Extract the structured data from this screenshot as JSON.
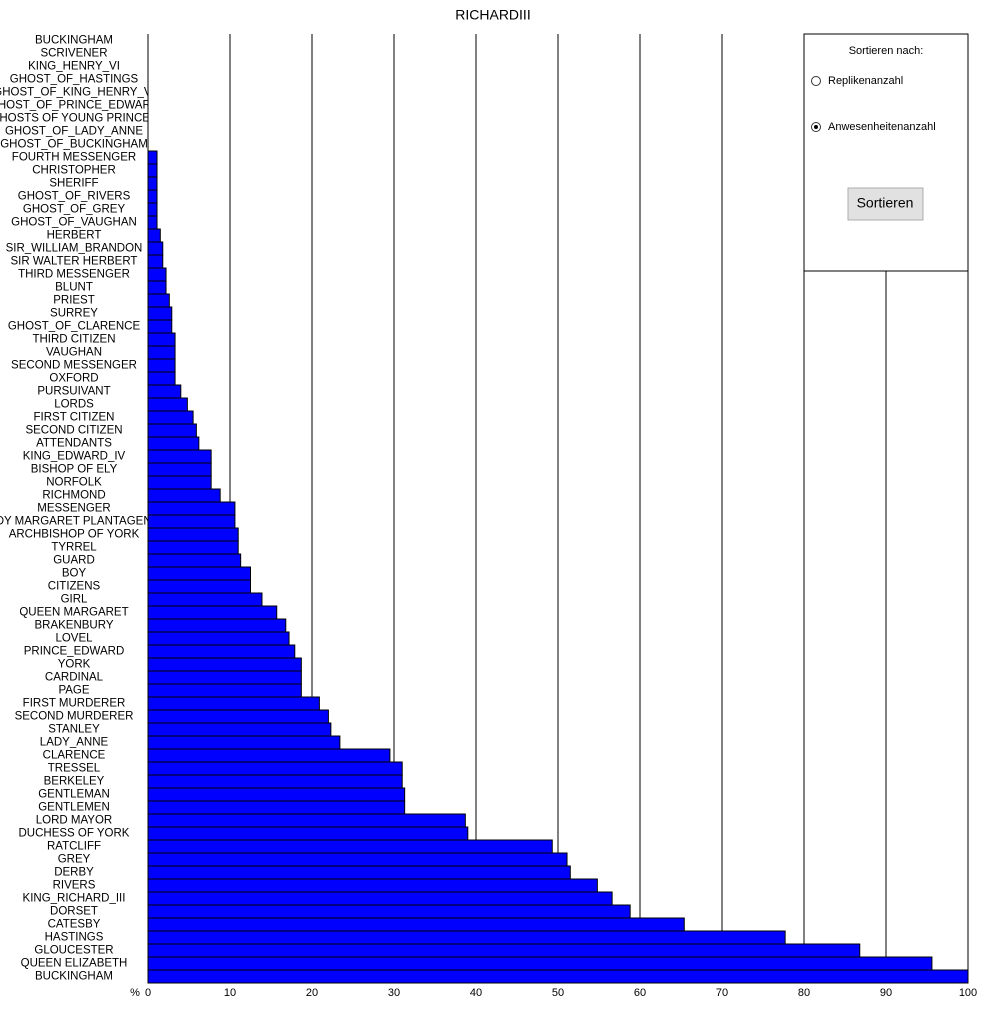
{
  "chart_data": {
    "type": "bar",
    "orientation": "horizontal",
    "title": "RICHARDIII",
    "x_label": "%",
    "categories": [
      "BUCKINGHAM",
      "SCRIVENER",
      "KING_HENRY_VI",
      "GHOST_OF_HASTINGS",
      "GHOST_OF_KING_HENRY_VI",
      "GHOST_OF_PRINCE_EDWARD",
      "GHOSTS OF YOUNG PRINCES",
      "GHOST_OF_LADY_ANNE",
      "GHOST_OF_BUCKINGHAM",
      "FOURTH MESSENGER",
      "CHRISTOPHER",
      "SHERIFF",
      "GHOST_OF_RIVERS",
      "GHOST_OF_GREY",
      "GHOST_OF_VAUGHAN",
      "HERBERT",
      "SIR_WILLIAM_BRANDON",
      "SIR WALTER HERBERT",
      "THIRD MESSENGER",
      "BLUNT",
      "PRIEST",
      "SURREY",
      "GHOST_OF_CLARENCE",
      "THIRD CITIZEN",
      "VAUGHAN",
      "SECOND MESSENGER",
      "OXFORD",
      "PURSUIVANT",
      "LORDS",
      "FIRST CITIZEN",
      "SECOND CITIZEN",
      "ATTENDANTS",
      "KING_EDWARD_IV",
      "BISHOP OF ELY",
      "NORFOLK",
      "RICHMOND",
      "MESSENGER",
      "LADY MARGARET PLANTAGENET",
      "ARCHBISHOP OF YORK",
      "TYRREL",
      "GUARD",
      "BOY",
      "CITIZENS",
      "GIRL",
      "QUEEN MARGARET",
      "BRAKENBURY",
      "LOVEL",
      "PRINCE_EDWARD",
      "YORK",
      "CARDINAL",
      "PAGE",
      "FIRST MURDERER",
      "SECOND MURDERER",
      "STANLEY",
      "LADY_ANNE",
      "CLARENCE",
      "TRESSEL",
      "BERKELEY",
      "GENTLEMAN",
      "GENTLEMEN",
      "LORD MAYOR",
      "DUCHESS OF YORK",
      "RATCLIFF",
      "GREY",
      "DERBY",
      "RIVERS",
      "KING_RICHARD_III",
      "DORSET",
      "CATESBY",
      "HASTINGS",
      "GLOUCESTER",
      "QUEEN ELIZABETH",
      "BUCKINGHAM"
    ],
    "values": [
      0,
      0,
      0,
      0,
      0,
      0,
      0,
      0,
      0,
      1.1,
      1.1,
      1.1,
      1.1,
      1.1,
      1.1,
      1.5,
      1.8,
      1.8,
      2.2,
      2.2,
      2.6,
      2.9,
      2.9,
      3.3,
      3.3,
      3.3,
      3.3,
      4.0,
      4.8,
      5.5,
      5.9,
      6.2,
      7.7,
      7.7,
      7.7,
      8.8,
      10.6,
      10.6,
      11.0,
      11.0,
      11.3,
      12.5,
      12.5,
      13.9,
      15.7,
      16.8,
      17.2,
      17.9,
      18.7,
      18.7,
      18.7,
      20.9,
      22.0,
      22.3,
      23.4,
      29.5,
      31.0,
      31.0,
      31.3,
      31.3,
      38.7,
      39.0,
      49.3,
      51.1,
      51.5,
      54.8,
      56.6,
      58.8,
      65.4,
      77.7,
      86.8,
      95.6,
      100
    ],
    "color": "#0000ff",
    "xlim": [
      0,
      100
    ],
    "xticks": [
      0,
      10,
      20,
      30,
      40,
      50,
      60,
      70,
      80,
      90,
      100
    ],
    "grid": true
  },
  "ui": {
    "sort_label": "Sortieren nach:",
    "options": [
      "Replikenanzahl",
      "Anwesenheitenanzahl"
    ],
    "selected": 1,
    "button": "Sortieren"
  }
}
